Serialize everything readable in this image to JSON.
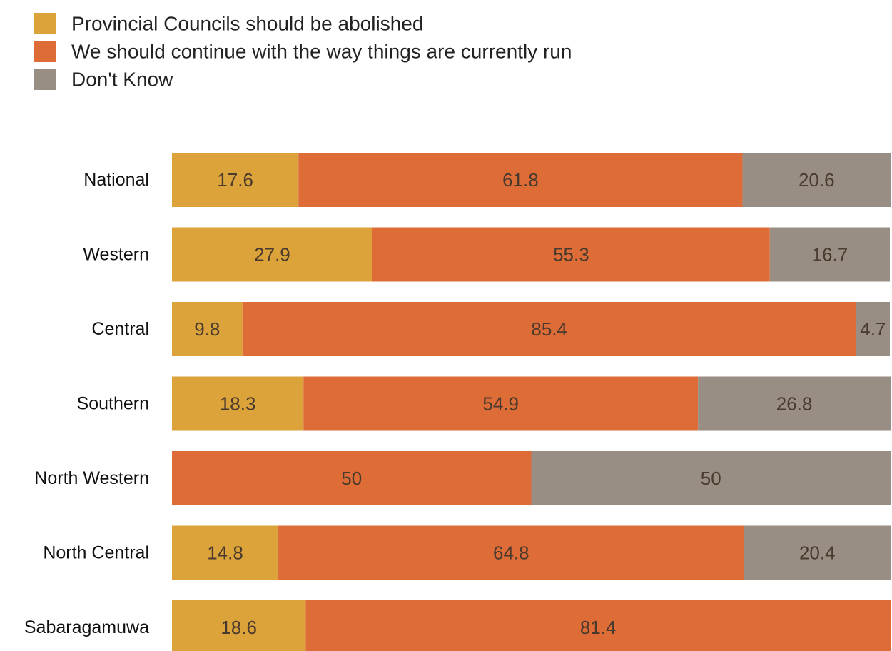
{
  "chart_data": {
    "type": "bar",
    "orientation": "horizontal",
    "stacked": true,
    "title": "",
    "xlabel": "",
    "ylabel": "",
    "xlim": [
      0,
      100
    ],
    "grid": false,
    "legend_position": "top-left",
    "categories": [
      "National",
      "Western",
      "Central",
      "Southern",
      "North Western",
      "North Central",
      "Sabaragamuwa"
    ],
    "series": [
      {
        "name": "Provincial Councils should be abolished",
        "color": "#DBA33A",
        "values": [
          17.6,
          27.9,
          9.8,
          18.3,
          0,
          14.8,
          18.6
        ],
        "labels": [
          "17.6",
          "27.9",
          "9.8",
          "18.3",
          "",
          "14.8",
          "18.6"
        ]
      },
      {
        "name": "We should continue with the way things are currently run",
        "color": "#DE6C37",
        "values": [
          61.8,
          55.3,
          85.4,
          54.9,
          50,
          64.8,
          81.4
        ],
        "labels": [
          "61.8",
          "55.3",
          "85.4",
          "54.9",
          "50",
          "64.8",
          "81.4"
        ]
      },
      {
        "name": "Don't Know",
        "color": "#988E84",
        "values": [
          20.6,
          16.7,
          4.7,
          26.8,
          50,
          20.4,
          0
        ],
        "labels": [
          "20.6",
          "16.7",
          "4.7",
          "26.8",
          "50",
          "20.4",
          ""
        ]
      }
    ]
  }
}
